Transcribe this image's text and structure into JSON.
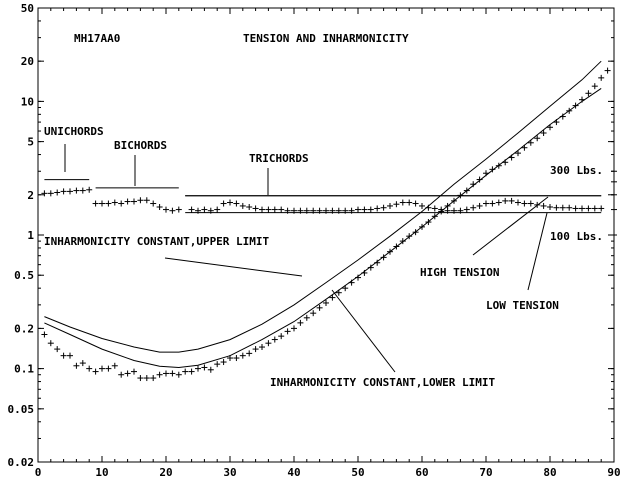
{
  "chart_data": {
    "type": "scatter",
    "title": "TENSION AND INHARMONICITY",
    "model": "MH17AA0",
    "xlim": [
      0,
      90
    ],
    "ylim": [
      0.02,
      50
    ],
    "yscale": "log",
    "xticks": [
      0,
      10,
      20,
      30,
      40,
      50,
      60,
      70,
      80,
      90
    ],
    "yticks": [
      {
        "v": 0.02,
        "label": "0.02"
      },
      {
        "v": 0.05,
        "label": "0.05"
      },
      {
        "v": 0.1,
        "label": "0.1"
      },
      {
        "v": 0.2,
        "label": "0.2"
      },
      {
        "v": 0.5,
        "label": "0.5"
      },
      {
        "v": 1,
        "label": "1"
      },
      {
        "v": 2,
        "label": "2"
      },
      {
        "v": 5,
        "label": "5"
      },
      {
        "v": 10,
        "label": "10"
      },
      {
        "v": 20,
        "label": "20"
      },
      {
        "v": 50,
        "label": "50"
      }
    ],
    "annotations": {
      "unichords": "UNICHORDS",
      "bichords": "BICHORDS",
      "trichords": "TRICHORDS",
      "upper_limit": "INHARMONICITY CONSTANT,UPPER LIMIT",
      "lower_limit": "INHARMONICITY CONSTANT,LOWER LIMIT",
      "high_tension": "HIGH TENSION",
      "low_tension": "LOW TENSION",
      "lbs_300": "300 Lbs.",
      "lbs_100": "100 Lbs."
    },
    "curves": {
      "inharmonicity_upper": [
        [
          1,
          0.245
        ],
        [
          5,
          0.205
        ],
        [
          10,
          0.168
        ],
        [
          15,
          0.145
        ],
        [
          19,
          0.133
        ],
        [
          22,
          0.133
        ],
        [
          25,
          0.14
        ],
        [
          30,
          0.165
        ],
        [
          35,
          0.215
        ],
        [
          40,
          0.3
        ],
        [
          45,
          0.44
        ],
        [
          50,
          0.65
        ],
        [
          55,
          0.98
        ],
        [
          60,
          1.5
        ],
        [
          65,
          2.4
        ],
        [
          70,
          3.7
        ],
        [
          75,
          5.8
        ],
        [
          80,
          9.2
        ],
        [
          85,
          14.5
        ],
        [
          88,
          20
        ]
      ],
      "inharmonicity_lower": [
        [
          1,
          0.22
        ],
        [
          5,
          0.18
        ],
        [
          10,
          0.14
        ],
        [
          15,
          0.115
        ],
        [
          19,
          0.104
        ],
        [
          22,
          0.102
        ],
        [
          25,
          0.106
        ],
        [
          30,
          0.125
        ],
        [
          35,
          0.165
        ],
        [
          40,
          0.225
        ],
        [
          45,
          0.33
        ],
        [
          50,
          0.49
        ],
        [
          55,
          0.75
        ],
        [
          60,
          1.15
        ],
        [
          65,
          1.8
        ],
        [
          70,
          2.8
        ],
        [
          75,
          4.3
        ],
        [
          80,
          6.7
        ],
        [
          85,
          10.0
        ],
        [
          88,
          12.5
        ]
      ],
      "high_tension": [
        [
          23,
          1.97
        ],
        [
          88,
          1.97
        ]
      ],
      "low_tension": [
        [
          23,
          1.47
        ],
        [
          88,
          1.47
        ]
      ],
      "unichord_bracket": [
        [
          1,
          2.6
        ],
        [
          8,
          2.6
        ]
      ],
      "bichord_bracket": [
        [
          9,
          2.25
        ],
        [
          22,
          2.25
        ]
      ],
      "trichord_bracket": [
        [
          23,
          1.97
        ],
        [
          88,
          1.97
        ]
      ]
    },
    "series": [
      {
        "marker": "+",
        "points": [
          [
            1,
            2.05
          ],
          [
            2,
            2.05
          ],
          [
            3,
            2.08
          ],
          [
            4,
            2.12
          ],
          [
            5,
            2.12
          ],
          [
            6,
            2.15
          ],
          [
            7,
            2.15
          ],
          [
            8,
            2.18
          ],
          [
            9,
            1.72
          ],
          [
            10,
            1.72
          ],
          [
            11,
            1.72
          ],
          [
            12,
            1.75
          ],
          [
            13,
            1.72
          ],
          [
            14,
            1.78
          ],
          [
            15,
            1.78
          ],
          [
            16,
            1.82
          ],
          [
            17,
            1.82
          ],
          [
            18,
            1.72
          ],
          [
            19,
            1.62
          ],
          [
            20,
            1.55
          ],
          [
            21,
            1.52
          ],
          [
            22,
            1.55
          ],
          [
            24,
            1.55
          ],
          [
            25,
            1.52
          ],
          [
            26,
            1.55
          ],
          [
            27,
            1.52
          ],
          [
            28,
            1.55
          ],
          [
            29,
            1.72
          ],
          [
            30,
            1.75
          ],
          [
            31,
            1.72
          ],
          [
            32,
            1.65
          ],
          [
            33,
            1.62
          ],
          [
            34,
            1.58
          ],
          [
            35,
            1.55
          ],
          [
            36,
            1.55
          ],
          [
            37,
            1.55
          ],
          [
            38,
            1.55
          ],
          [
            39,
            1.52
          ],
          [
            40,
            1.52
          ],
          [
            41,
            1.52
          ],
          [
            42,
            1.52
          ],
          [
            43,
            1.52
          ],
          [
            44,
            1.52
          ],
          [
            45,
            1.52
          ],
          [
            46,
            1.52
          ],
          [
            47,
            1.52
          ],
          [
            48,
            1.52
          ],
          [
            49,
            1.52
          ],
          [
            50,
            1.55
          ],
          [
            51,
            1.55
          ],
          [
            52,
            1.55
          ],
          [
            53,
            1.58
          ],
          [
            54,
            1.6
          ],
          [
            55,
            1.65
          ],
          [
            56,
            1.7
          ],
          [
            57,
            1.75
          ],
          [
            58,
            1.75
          ],
          [
            59,
            1.72
          ],
          [
            60,
            1.65
          ],
          [
            61,
            1.6
          ],
          [
            62,
            1.58
          ],
          [
            63,
            1.55
          ],
          [
            64,
            1.52
          ],
          [
            65,
            1.52
          ],
          [
            66,
            1.52
          ],
          [
            67,
            1.55
          ],
          [
            68,
            1.6
          ],
          [
            69,
            1.65
          ],
          [
            70,
            1.72
          ],
          [
            71,
            1.72
          ],
          [
            72,
            1.75
          ],
          [
            73,
            1.8
          ],
          [
            74,
            1.8
          ],
          [
            75,
            1.75
          ],
          [
            76,
            1.72
          ],
          [
            77,
            1.72
          ],
          [
            78,
            1.68
          ],
          [
            79,
            1.65
          ],
          [
            80,
            1.62
          ],
          [
            81,
            1.6
          ],
          [
            82,
            1.6
          ],
          [
            83,
            1.6
          ],
          [
            84,
            1.58
          ],
          [
            85,
            1.58
          ],
          [
            86,
            1.58
          ],
          [
            87,
            1.58
          ],
          [
            88,
            1.58
          ]
        ]
      },
      {
        "marker": "+",
        "points": [
          [
            1,
            0.18
          ],
          [
            2,
            0.155
          ],
          [
            3,
            0.14
          ],
          [
            4,
            0.125
          ],
          [
            5,
            0.125
          ],
          [
            6,
            0.105
          ],
          [
            7,
            0.11
          ],
          [
            8,
            0.1
          ],
          [
            9,
            0.095
          ],
          [
            10,
            0.1
          ],
          [
            11,
            0.1
          ],
          [
            12,
            0.105
          ],
          [
            13,
            0.09
          ],
          [
            14,
            0.092
          ],
          [
            15,
            0.095
          ],
          [
            16,
            0.085
          ],
          [
            17,
            0.085
          ],
          [
            18,
            0.085
          ],
          [
            19,
            0.09
          ],
          [
            20,
            0.092
          ],
          [
            21,
            0.092
          ],
          [
            22,
            0.09
          ],
          [
            23,
            0.095
          ],
          [
            24,
            0.095
          ],
          [
            25,
            0.1
          ],
          [
            26,
            0.102
          ],
          [
            27,
            0.098
          ],
          [
            28,
            0.108
          ],
          [
            29,
            0.112
          ],
          [
            30,
            0.12
          ],
          [
            31,
            0.12
          ],
          [
            32,
            0.125
          ],
          [
            33,
            0.13
          ],
          [
            34,
            0.14
          ],
          [
            35,
            0.145
          ],
          [
            36,
            0.155
          ],
          [
            37,
            0.165
          ],
          [
            38,
            0.175
          ],
          [
            39,
            0.19
          ],
          [
            40,
            0.2
          ],
          [
            41,
            0.22
          ],
          [
            42,
            0.24
          ],
          [
            43,
            0.26
          ],
          [
            44,
            0.285
          ],
          [
            45,
            0.31
          ],
          [
            46,
            0.34
          ],
          [
            47,
            0.37
          ],
          [
            48,
            0.4
          ],
          [
            49,
            0.44
          ],
          [
            50,
            0.48
          ],
          [
            51,
            0.52
          ],
          [
            52,
            0.57
          ],
          [
            53,
            0.62
          ],
          [
            54,
            0.68
          ],
          [
            55,
            0.75
          ],
          [
            56,
            0.82
          ],
          [
            57,
            0.9
          ],
          [
            58,
            0.98
          ],
          [
            59,
            1.05
          ],
          [
            60,
            1.15
          ],
          [
            61,
            1.25
          ],
          [
            62,
            1.38
          ],
          [
            63,
            1.5
          ],
          [
            64,
            1.65
          ],
          [
            65,
            1.8
          ],
          [
            66,
            1.98
          ],
          [
            67,
            2.15
          ],
          [
            68,
            2.4
          ],
          [
            69,
            2.6
          ],
          [
            70,
            2.9
          ],
          [
            71,
            3.1
          ],
          [
            72,
            3.3
          ],
          [
            73,
            3.5
          ],
          [
            74,
            3.8
          ],
          [
            75,
            4.1
          ],
          [
            76,
            4.5
          ],
          [
            77,
            4.9
          ],
          [
            78,
            5.3
          ],
          [
            79,
            5.8
          ],
          [
            80,
            6.4
          ],
          [
            81,
            7.0
          ],
          [
            82,
            7.7
          ],
          [
            83,
            8.5
          ],
          [
            84,
            9.3
          ],
          [
            85,
            10.3
          ],
          [
            86,
            11.5
          ],
          [
            87,
            13.0
          ],
          [
            88,
            15.0
          ],
          [
            89,
            17.0
          ]
        ]
      },
      {
        "marker": "+",
        "points": [
          [
            90,
            3.0
          ],
          [
            90,
            2.5
          ],
          [
            90,
            2.0
          ],
          [
            90,
            1.55
          ],
          [
            90,
            1.0
          ]
        ]
      }
    ]
  }
}
